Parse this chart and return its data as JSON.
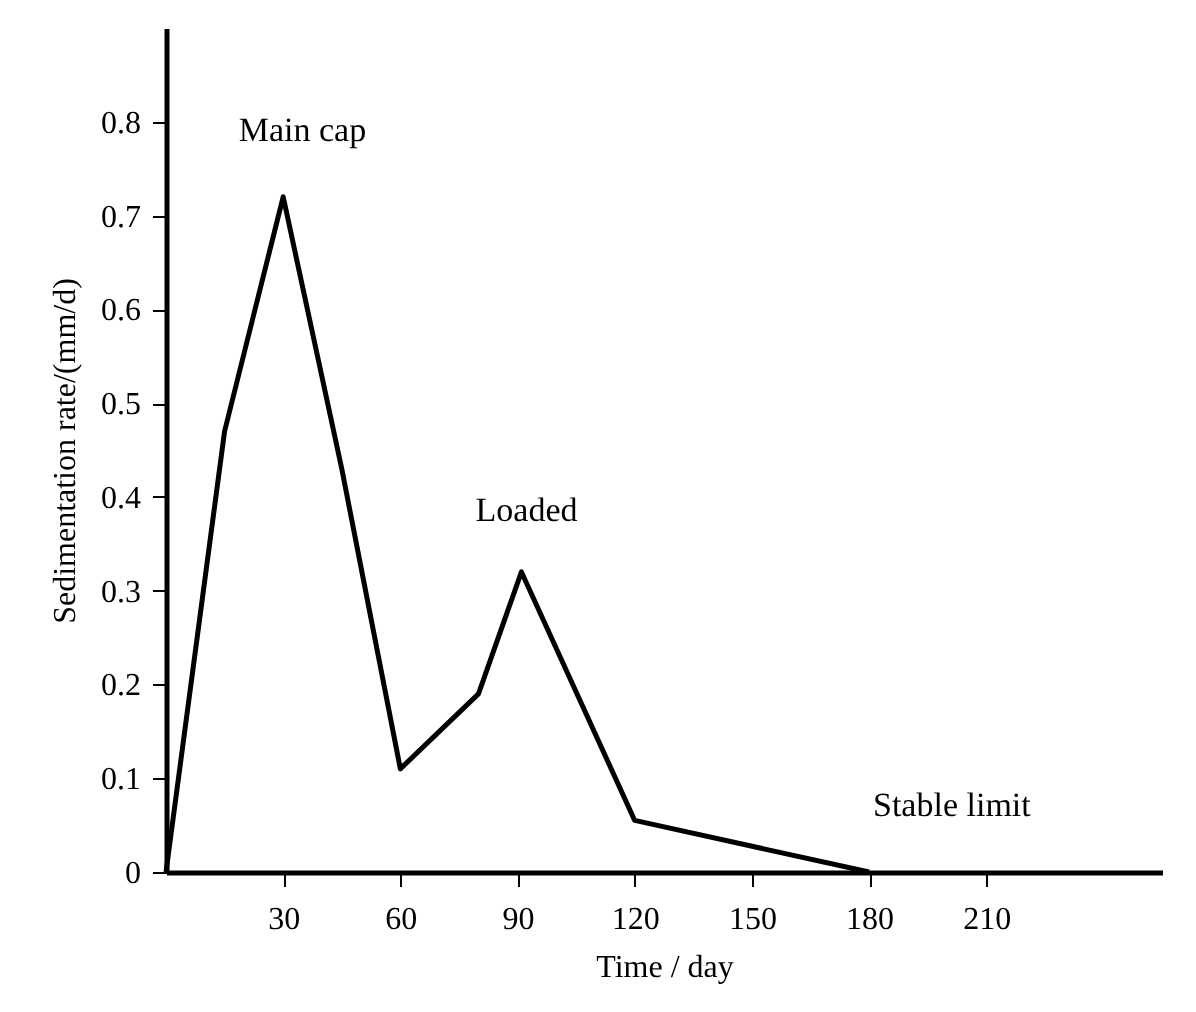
{
  "chart_data": {
    "type": "line",
    "xlabel": "Time / day",
    "ylabel": "Sedimentation rate/(mm/d)",
    "x": [
      0,
      15,
      30,
      45,
      60,
      80,
      91,
      120,
      180
    ],
    "series": [
      {
        "color": "#000000",
        "values": [
          0,
          0.47,
          0.72,
          0.43,
          0.11,
          0.19,
          0.32,
          0.055,
          0
        ]
      }
    ],
    "xlim": [
      0,
      255
    ],
    "xticks": [
      30,
      60,
      90,
      120,
      150,
      180,
      210
    ],
    "ylim": [
      0,
      0.9
    ],
    "yticks": [
      0,
      0.1,
      0.2,
      0.3,
      0.4,
      0.5,
      0.6,
      0.7,
      0.8
    ],
    "annotations": [
      "Main cap",
      "Loaded",
      "Stable limit"
    ],
    "grid": false,
    "marker": "none",
    "line_style": "solid"
  }
}
